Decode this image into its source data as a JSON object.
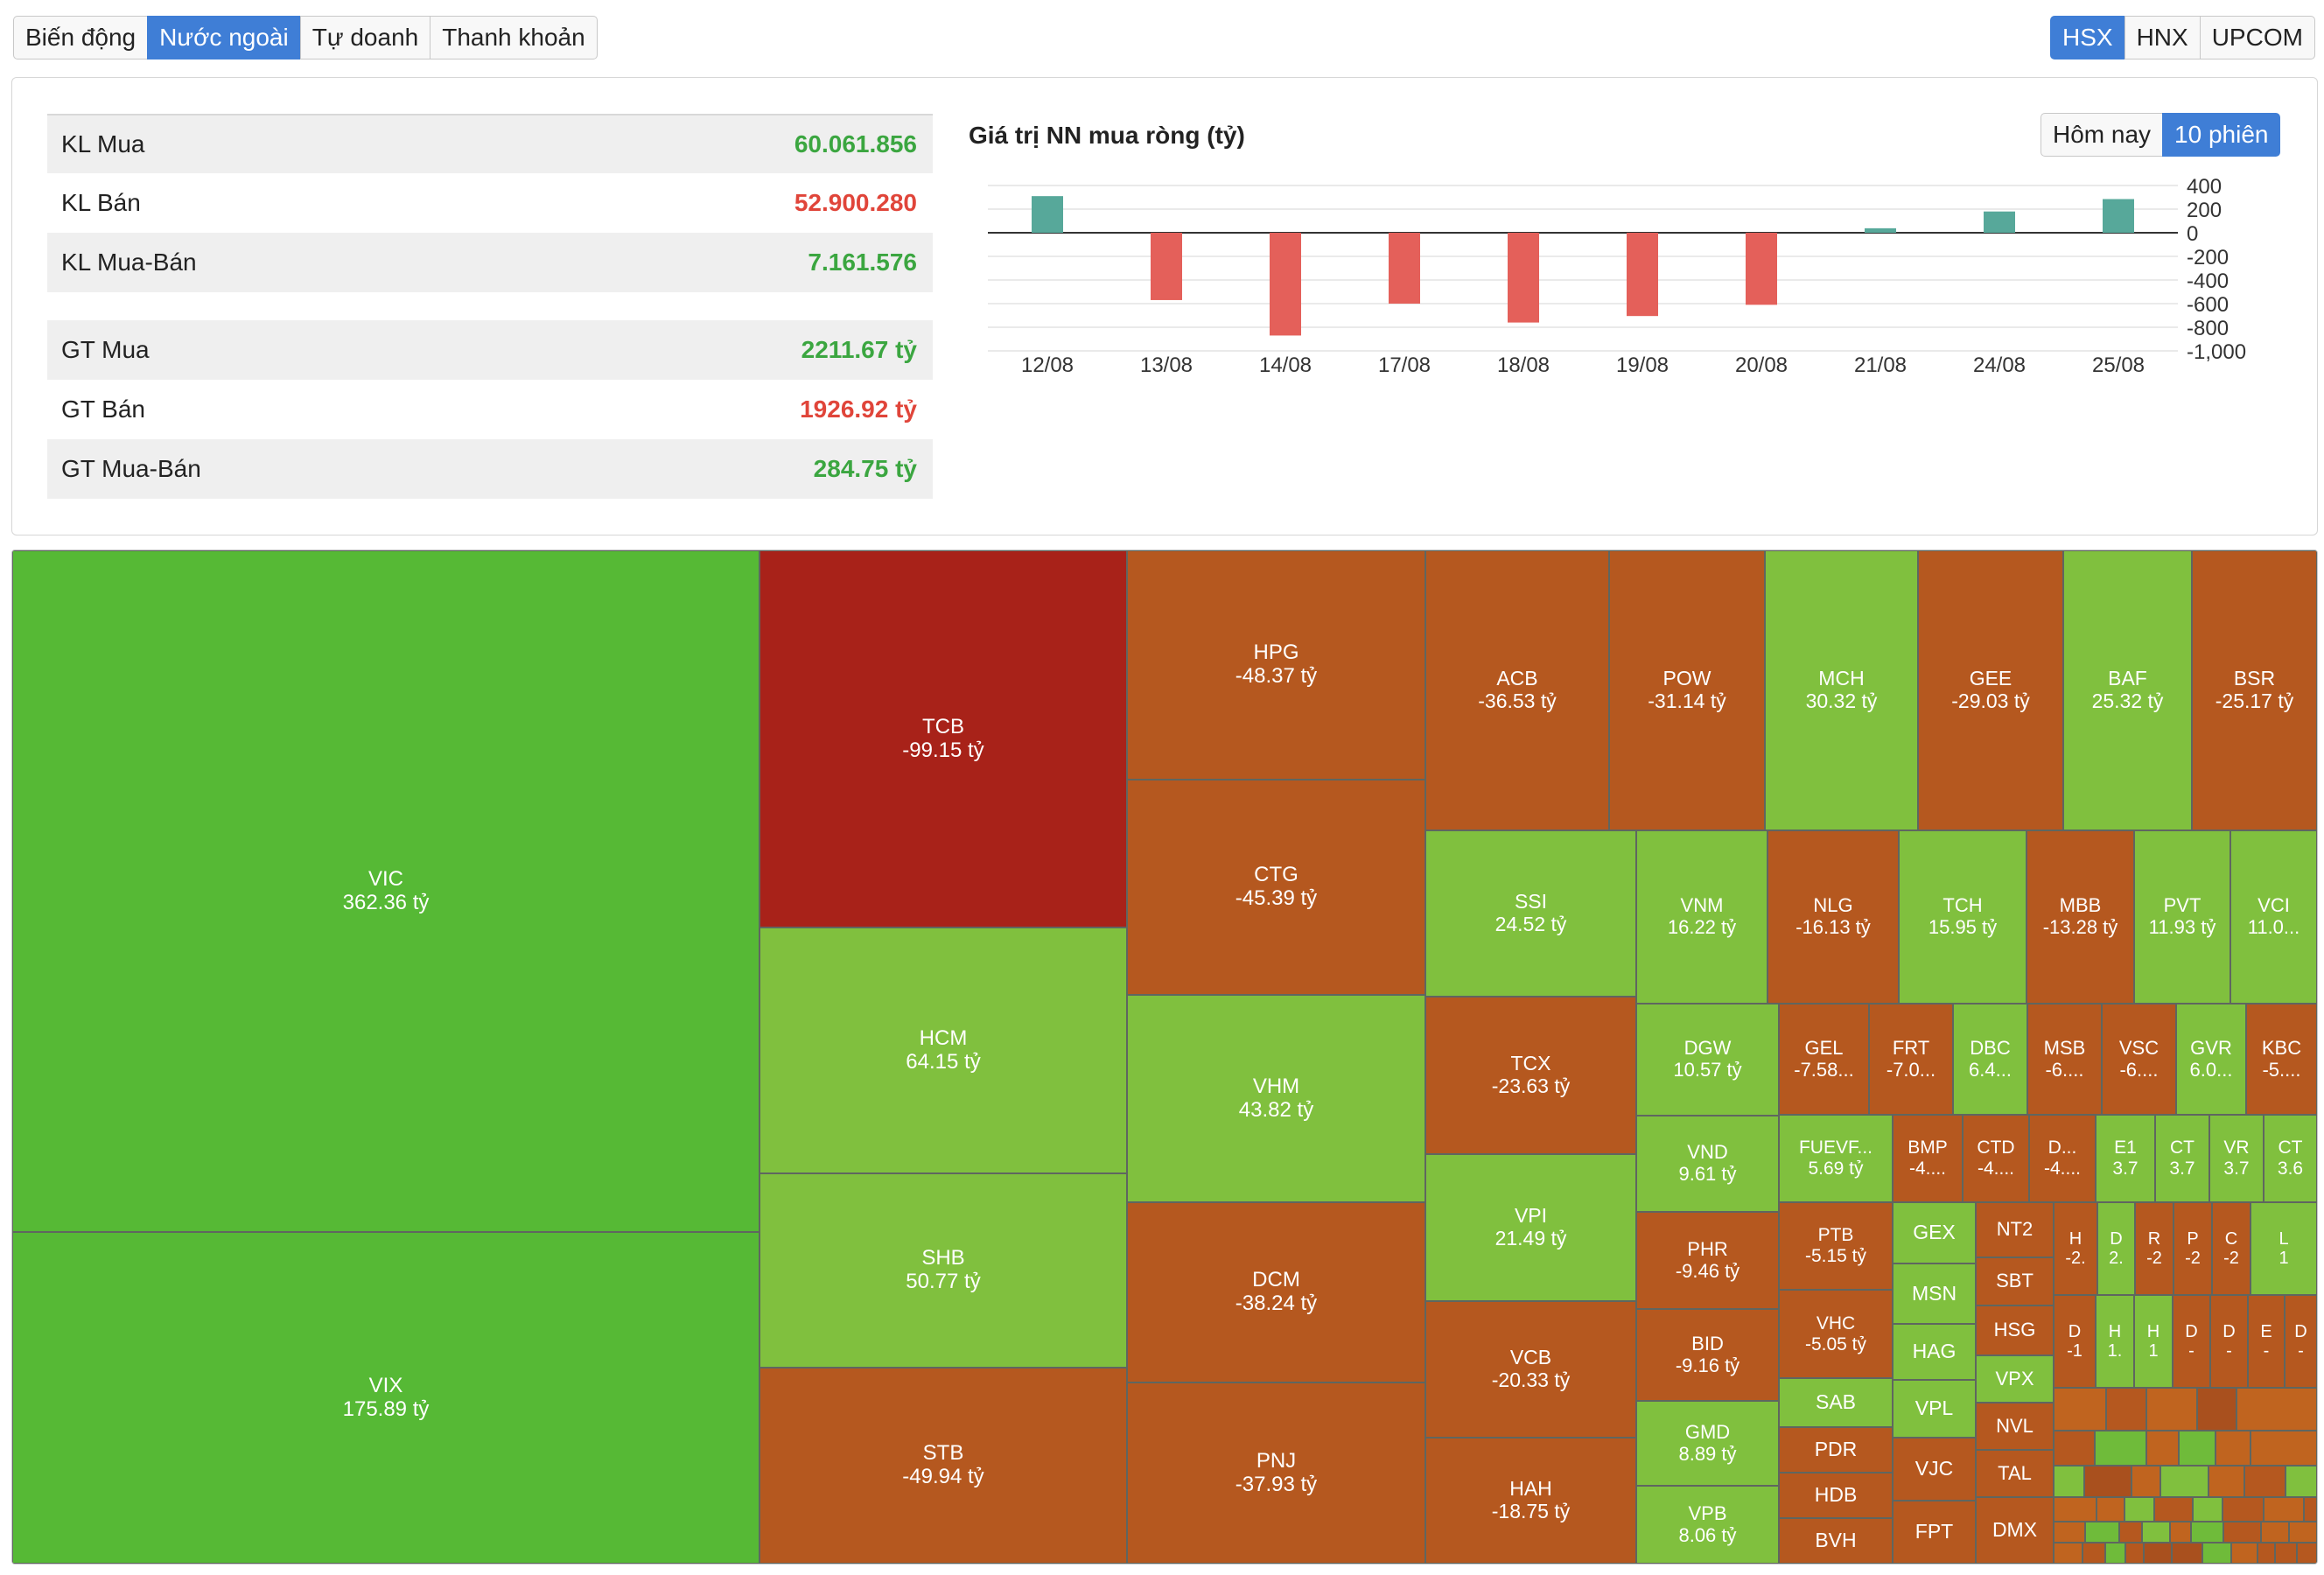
{
  "top_tabs": [
    {
      "label": "Biến động",
      "active": false
    },
    {
      "label": "Nước ngoài",
      "active": true
    },
    {
      "label": "Tự doanh",
      "active": false
    },
    {
      "label": "Thanh khoản",
      "active": false
    }
  ],
  "exchange_tabs": [
    {
      "label": "HSX",
      "active": true
    },
    {
      "label": "HNX",
      "active": false
    },
    {
      "label": "UPCOM",
      "active": false
    }
  ],
  "stats": [
    {
      "label": "KL Mua",
      "value": "60.061.856",
      "tone": "green"
    },
    {
      "label": "KL Bán",
      "value": "52.900.280",
      "tone": "red"
    },
    {
      "label": "KL Mua-Bán",
      "value": "7.161.576",
      "tone": "green"
    },
    {
      "label": "GT Mua",
      "value": "2211.67 tỷ",
      "tone": "green"
    },
    {
      "label": "GT Bán",
      "value": "1926.92 tỷ",
      "tone": "red"
    },
    {
      "label": "GT Mua-Bán",
      "value": "284.75 tỷ",
      "tone": "green"
    }
  ],
  "chart": {
    "title": "Giá trị NN mua ròng (tỷ)",
    "period_tabs": [
      {
        "label": "Hôm nay",
        "active": false
      },
      {
        "label": "10 phiên",
        "active": true
      }
    ]
  },
  "chart_data": {
    "type": "bar",
    "title": "Giá trị NN mua ròng (tỷ)",
    "categories": [
      "12/08",
      "13/08",
      "14/08",
      "17/08",
      "18/08",
      "19/08",
      "20/08",
      "21/08",
      "24/08",
      "25/08"
    ],
    "values": [
      310,
      -570,
      -870,
      -600,
      -760,
      -705,
      -610,
      38,
      180,
      285
    ],
    "ylim": [
      -1000,
      400
    ],
    "yticks": [
      400,
      200,
      0,
      -200,
      -400,
      -600,
      -800,
      -1000
    ],
    "ytick_labels": [
      "400",
      "200",
      "0",
      "-200",
      "-400",
      "-600",
      "-800",
      "-1,000"
    ],
    "colors": {
      "positive": "#57a89a",
      "negative": "#e4605a"
    },
    "grid": true,
    "y_axis_side": "right"
  },
  "treemap": {
    "tiles": [
      {
        "symbol": "VIC",
        "value": "362.36 tỷ"
      },
      {
        "symbol": "VIX",
        "value": "175.89 tỷ"
      },
      {
        "symbol": "TCB",
        "value": "-99.15 tỷ"
      },
      {
        "symbol": "HCM",
        "value": "64.15 tỷ"
      },
      {
        "symbol": "SHB",
        "value": "50.77 tỷ"
      },
      {
        "symbol": "STB",
        "value": "-49.94 tỷ"
      },
      {
        "symbol": "HPG",
        "value": "-48.37 tỷ"
      },
      {
        "symbol": "CTG",
        "value": "-45.39 tỷ"
      },
      {
        "symbol": "VHM",
        "value": "43.82 tỷ"
      },
      {
        "symbol": "DCM",
        "value": "-38.24 tỷ"
      },
      {
        "symbol": "PNJ",
        "value": "-37.93 tỷ"
      },
      {
        "symbol": "ACB",
        "value": "-36.53 tỷ"
      },
      {
        "symbol": "POW",
        "value": "-31.14 tỷ"
      },
      {
        "symbol": "MCH",
        "value": "30.32 tỷ"
      },
      {
        "symbol": "GEE",
        "value": "-29.03 tỷ"
      },
      {
        "symbol": "BAF",
        "value": "25.32 tỷ"
      },
      {
        "symbol": "BSR",
        "value": "-25.17 tỷ"
      },
      {
        "symbol": "SSI",
        "value": "24.52 tỷ"
      },
      {
        "symbol": "VNM",
        "value": "16.22 tỷ"
      },
      {
        "symbol": "NLG",
        "value": "-16.13 tỷ"
      },
      {
        "symbol": "TCH",
        "value": "15.95 tỷ"
      },
      {
        "symbol": "MBB",
        "value": "-13.28 tỷ"
      },
      {
        "symbol": "PVT",
        "value": "11.93 tỷ"
      },
      {
        "symbol": "VCI",
        "value": "11.0..."
      },
      {
        "symbol": "TCX",
        "value": "-23.63 tỷ"
      },
      {
        "symbol": "VPI",
        "value": "21.49 tỷ"
      },
      {
        "symbol": "VCB",
        "value": "-20.33 tỷ"
      },
      {
        "symbol": "HAH",
        "value": "-18.75 tỷ"
      },
      {
        "symbol": "DGW",
        "value": "10.57 tỷ"
      },
      {
        "symbol": "VND",
        "value": "9.61 tỷ"
      },
      {
        "symbol": "PHR",
        "value": "-9.46 tỷ"
      },
      {
        "symbol": "BID",
        "value": "-9.16 tỷ"
      },
      {
        "symbol": "GMD",
        "value": "8.89 tỷ"
      },
      {
        "symbol": "VPB",
        "value": "8.06 tỷ"
      },
      {
        "symbol": "GEL",
        "value": "-7.58..."
      },
      {
        "symbol": "FRT",
        "value": "-7.0..."
      },
      {
        "symbol": "DBC",
        "value": "6.4..."
      },
      {
        "symbol": "MSB",
        "value": "-6...."
      },
      {
        "symbol": "VSC",
        "value": "-6...."
      },
      {
        "symbol": "GVR",
        "value": "6.0..."
      },
      {
        "symbol": "KBC",
        "value": "-5...."
      },
      {
        "symbol": "FUEVF...",
        "value": "5.69 tỷ"
      },
      {
        "symbol": "BMP",
        "value": "-4...."
      },
      {
        "symbol": "CTD",
        "value": "-4...."
      },
      {
        "symbol": "D...",
        "value": "-4...."
      },
      {
        "symbol": "E1",
        "value": "3.7"
      },
      {
        "symbol": "CT",
        "value": "3.7"
      },
      {
        "symbol": "VR",
        "value": "3.7"
      },
      {
        "symbol": "CT",
        "value": "3.6"
      },
      {
        "symbol": "PTB",
        "value": "-5.15 tỷ"
      },
      {
        "symbol": "VHC",
        "value": "-5.05 tỷ"
      },
      {
        "symbol": "SAB",
        "value": ""
      },
      {
        "symbol": "PDR",
        "value": ""
      },
      {
        "symbol": "HDB",
        "value": ""
      },
      {
        "symbol": "BVH",
        "value": ""
      },
      {
        "symbol": "GEX",
        "value": ""
      },
      {
        "symbol": "MSN",
        "value": ""
      },
      {
        "symbol": "HAG",
        "value": ""
      },
      {
        "symbol": "VPL",
        "value": ""
      },
      {
        "symbol": "VJC",
        "value": ""
      },
      {
        "symbol": "FPT",
        "value": ""
      },
      {
        "symbol": "NT2",
        "value": ""
      },
      {
        "symbol": "SBT",
        "value": ""
      },
      {
        "symbol": "HSG",
        "value": ""
      },
      {
        "symbol": "VPX",
        "value": ""
      },
      {
        "symbol": "NVL",
        "value": ""
      },
      {
        "symbol": "TAL",
        "value": ""
      },
      {
        "symbol": "DMX",
        "value": ""
      },
      {
        "symbol": "H",
        "value": "-2."
      },
      {
        "symbol": "D",
        "value": "2."
      },
      {
        "symbol": "R",
        "value": "-2"
      },
      {
        "symbol": "P",
        "value": "-2"
      },
      {
        "symbol": "C",
        "value": "-2"
      },
      {
        "symbol": "L",
        "value": "1"
      },
      {
        "symbol": "D",
        "value": "-1"
      },
      {
        "symbol": "H",
        "value": "1."
      },
      {
        "symbol": "H",
        "value": "1"
      },
      {
        "symbol": "D",
        "value": "-"
      },
      {
        "symbol": "D",
        "value": "-"
      },
      {
        "symbol": "E",
        "value": "-"
      },
      {
        "symbol": "D",
        "value": "-"
      }
    ]
  }
}
